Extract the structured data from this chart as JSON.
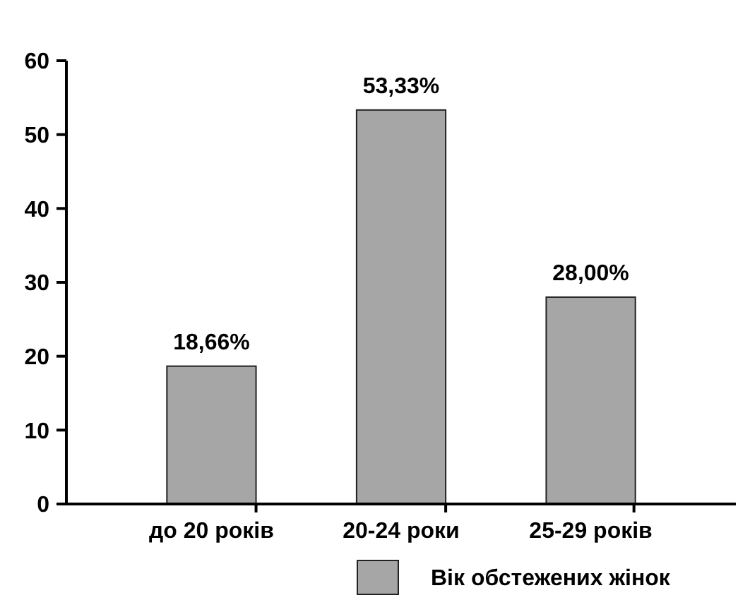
{
  "chart_data": {
    "type": "bar",
    "categories": [
      "до 20 років",
      "20-24 роки",
      "25-29 років"
    ],
    "series": [
      {
        "name": "Вік обстежених жінок",
        "color": "#a6a6a6",
        "values": [
          18.66,
          53.33,
          28.0
        ],
        "value_labels": [
          "18,66%",
          "53,33%",
          "28,00%"
        ]
      }
    ],
    "ylim": [
      0,
      60
    ],
    "yticks": [
      0,
      10,
      20,
      30,
      40,
      50,
      60
    ],
    "grid": false,
    "legend": "bottom"
  }
}
